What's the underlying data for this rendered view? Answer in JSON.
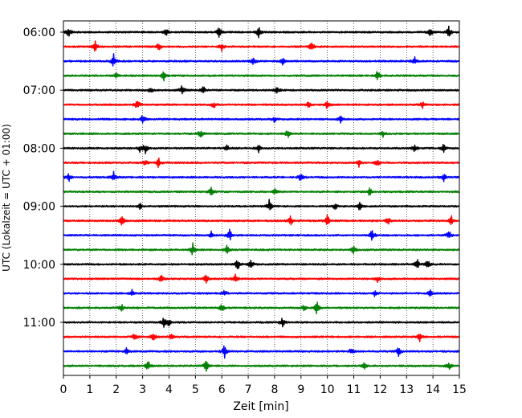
{
  "chart_data": {
    "type": "line",
    "title": "",
    "xlabel": "Zeit  [min]",
    "ylabel": "UTC (Lokalzeit = UTC + 01:00)",
    "xlim": [
      0,
      15
    ],
    "x_ticks": [
      0,
      1,
      2,
      3,
      4,
      5,
      6,
      7,
      8,
      9,
      10,
      11,
      12,
      13,
      14,
      15
    ],
    "x_tick_labels": [
      "0",
      "1",
      "2",
      "3",
      "4",
      "5",
      "6",
      "7",
      "8",
      "9",
      "10",
      "11",
      "12",
      "13",
      "14",
      "15"
    ],
    "y_tick_labels": [
      "06:00",
      "07:00",
      "08:00",
      "09:00",
      "10:00",
      "11:00"
    ],
    "grid": "vertical dotted at each minute",
    "trace_interval_minutes": 15,
    "trace_count": 24,
    "first_trace_start": "06:00",
    "trace_color_cycle": [
      "#000000",
      "#ff0000",
      "#0000ff",
      "#008000"
    ],
    "events": [
      {
        "trace": 0,
        "minutes": [
          0.2,
          3.9,
          5.9,
          7.4,
          13.9,
          14.6
        ]
      },
      {
        "trace": 1,
        "minutes": [
          1.2,
          3.6,
          6.0,
          9.4
        ]
      },
      {
        "trace": 2,
        "minutes": [
          1.9,
          7.2,
          8.3,
          13.3
        ]
      },
      {
        "trace": 3,
        "minutes": [
          2.0,
          3.8,
          11.9
        ]
      },
      {
        "trace": 4,
        "minutes": [
          3.3,
          4.5,
          5.3,
          8.1
        ]
      },
      {
        "trace": 5,
        "minutes": [
          2.8,
          5.7,
          9.3,
          10.0,
          13.6
        ]
      },
      {
        "trace": 6,
        "minutes": [
          3.0,
          8.0,
          10.5
        ]
      },
      {
        "trace": 7,
        "minutes": [
          5.2,
          8.5,
          12.1
        ]
      },
      {
        "trace": 8,
        "minutes": [
          2.9,
          3.1,
          6.2,
          7.4,
          13.3,
          14.4
        ]
      },
      {
        "trace": 9,
        "minutes": [
          3.1,
          3.6,
          11.2,
          11.9
        ]
      },
      {
        "trace": 10,
        "minutes": [
          0.2,
          1.9,
          9.0,
          14.4
        ]
      },
      {
        "trace": 11,
        "minutes": [
          5.6,
          8.0,
          11.6
        ]
      },
      {
        "trace": 12,
        "minutes": [
          2.9,
          7.8,
          10.3,
          11.2
        ]
      },
      {
        "trace": 13,
        "minutes": [
          2.2,
          8.6,
          10.0,
          12.3,
          14.7
        ]
      },
      {
        "trace": 14,
        "minutes": [
          5.6,
          6.3,
          11.7,
          14.6
        ]
      },
      {
        "trace": 15,
        "minutes": [
          4.9,
          6.2,
          11.0
        ]
      },
      {
        "trace": 16,
        "minutes": [
          6.6,
          7.1,
          13.4,
          13.8
        ]
      },
      {
        "trace": 17,
        "minutes": [
          3.7,
          5.4,
          6.5,
          11.9
        ]
      },
      {
        "trace": 18,
        "minutes": [
          2.6,
          6.1,
          11.8,
          13.9
        ]
      },
      {
        "trace": 19,
        "minutes": [
          2.2,
          6.0,
          9.1,
          9.6
        ]
      },
      {
        "trace": 20,
        "minutes": [
          3.8,
          4.0,
          8.3
        ]
      },
      {
        "trace": 21,
        "minutes": [
          2.7,
          3.4,
          4.1,
          13.5
        ]
      },
      {
        "trace": 22,
        "minutes": [
          2.4,
          6.1,
          10.9,
          12.7
        ]
      },
      {
        "trace": 23,
        "minutes": [
          3.2,
          5.4,
          11.4,
          14.6
        ]
      }
    ]
  }
}
